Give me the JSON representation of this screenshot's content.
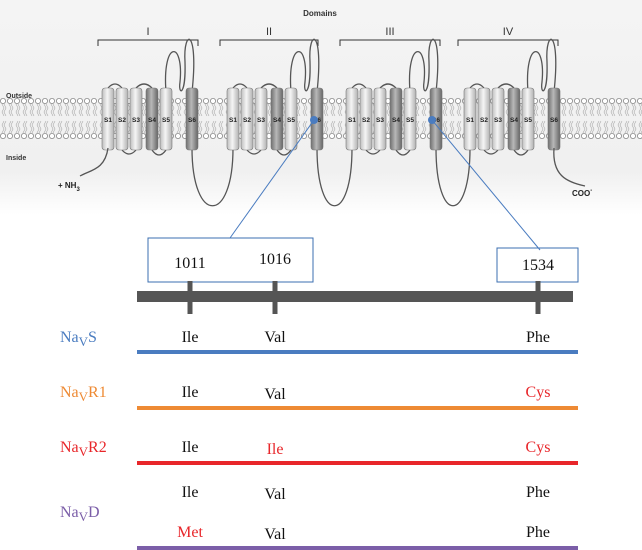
{
  "membrane": {
    "title": "Domains",
    "domains": [
      {
        "label": "I",
        "segments": [
          "S1",
          "S2",
          "S3",
          "S4",
          "S5",
          "S6"
        ]
      },
      {
        "label": "II",
        "segments": [
          "S1",
          "S2",
          "S3",
          "S4",
          "S5",
          "S6"
        ]
      },
      {
        "label": "III",
        "segments": [
          "S1",
          "S2",
          "S3",
          "S4",
          "S5",
          "S6"
        ]
      },
      {
        "label": "IV",
        "segments": [
          "S1",
          "S2",
          "S3",
          "S4",
          "S5",
          "S6"
        ]
      }
    ],
    "outside": "Outside",
    "inside": "Inside",
    "n_term": {
      "text": "+ NH",
      "sub": "3"
    },
    "c_term": {
      "text": "COO",
      "sup": "-"
    }
  },
  "positions": [
    "1011",
    "1016",
    "1534"
  ],
  "variants": [
    {
      "name": "Na",
      "sub": "V",
      "suffix": "S",
      "color": "#4a7cc0",
      "rows": [
        [
          {
            "text": "Ile"
          },
          {
            "text": "Val"
          },
          {
            "text": "Phe"
          }
        ]
      ]
    },
    {
      "name": "Na",
      "sub": "V",
      "suffix": "R1",
      "color": "#ee8a34",
      "rows": [
        [
          {
            "text": "Ile"
          },
          {
            "text": "Val"
          },
          {
            "text": "Cys",
            "color": "#e8262a"
          }
        ]
      ]
    },
    {
      "name": "Na",
      "sub": "V",
      "suffix": "R2",
      "color": "#e8262a",
      "rows": [
        [
          {
            "text": "Ile"
          },
          {
            "text": "Ile",
            "color": "#e8262a"
          },
          {
            "text": "Cys",
            "color": "#e8262a"
          }
        ]
      ]
    },
    {
      "name": "Na",
      "sub": "V",
      "suffix": "D",
      "color": "#7b5ea8",
      "rows": [
        [
          {
            "text": "Ile"
          },
          {
            "text": "Val"
          },
          {
            "text": "Phe"
          }
        ],
        [
          {
            "text": "Met",
            "color": "#e8262a"
          },
          {
            "text": "Val"
          },
          {
            "text": "Phe"
          }
        ]
      ]
    }
  ]
}
